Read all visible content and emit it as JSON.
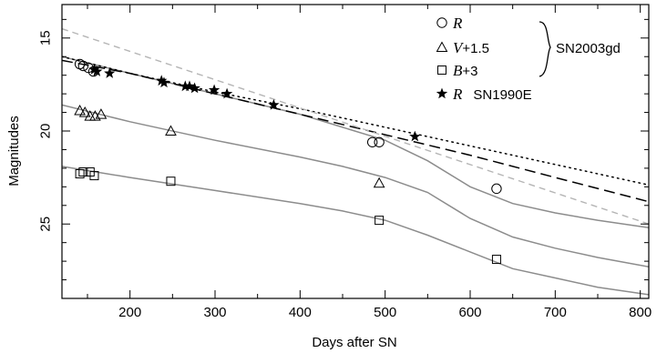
{
  "chart_data": {
    "type": "scatter",
    "title": "",
    "xlabel": "Days after SN",
    "ylabel": "Magnitudes",
    "xlim": [
      120,
      810
    ],
    "ylim": [
      13.2,
      29
    ],
    "y_inverted": true,
    "x_ticks": [
      200,
      300,
      400,
      500,
      600,
      700,
      800
    ],
    "y_ticks": [
      15,
      20,
      25
    ],
    "grid": false,
    "legend_position": "top-right",
    "legend": {
      "entries": [
        {
          "marker": "circle",
          "label": "R"
        },
        {
          "marker": "triangle",
          "label": "V+1.5"
        },
        {
          "marker": "square",
          "label": "B+3"
        },
        {
          "marker": "star",
          "label": "R SN1990E"
        }
      ],
      "group_label": "SN2003gd"
    },
    "series": [
      {
        "name": "R",
        "marker": "circle",
        "x": [
          141,
          145,
          151,
          157
        ],
        "y": [
          16.4,
          16.5,
          16.6,
          16.8
        ]
      },
      {
        "name": "R",
        "marker": "circle",
        "x": [
          485,
          493,
          631
        ],
        "y": [
          20.6,
          20.6,
          23.1
        ]
      },
      {
        "name": "V+1.5",
        "marker": "triangle",
        "x": [
          141,
          147,
          153,
          159,
          166,
          248,
          493
        ],
        "y": [
          18.9,
          19.0,
          19.2,
          19.2,
          19.1,
          20.0,
          22.8
        ]
      },
      {
        "name": "B+3",
        "marker": "square",
        "x": [
          141,
          145,
          153,
          158,
          248,
          493,
          631
        ],
        "y": [
          22.3,
          22.2,
          22.2,
          22.4,
          22.7,
          24.8,
          26.9
        ]
      },
      {
        "name": "R SN1990E",
        "marker": "star",
        "x": [
          158,
          161,
          176,
          237,
          240,
          265,
          270,
          276,
          299,
          314,
          369,
          535
        ],
        "y": [
          16.7,
          16.8,
          16.9,
          17.3,
          17.4,
          17.6,
          17.6,
          17.7,
          17.8,
          18.0,
          18.6,
          20.3
        ]
      }
    ],
    "curves": [
      {
        "style": "solid-gray",
        "x": [
          120,
          200,
          300,
          400,
          450,
          500,
          550,
          600,
          650,
          700,
          750,
          810
        ],
        "y": [
          16.0,
          16.9,
          18.0,
          19.1,
          19.8,
          20.5,
          21.6,
          23.0,
          23.9,
          24.4,
          24.8,
          25.2
        ]
      },
      {
        "style": "solid-gray",
        "x": [
          120,
          200,
          300,
          400,
          450,
          500,
          550,
          600,
          650,
          700,
          750,
          810
        ],
        "y": [
          18.6,
          19.5,
          20.5,
          21.4,
          21.9,
          22.5,
          23.3,
          24.7,
          25.7,
          26.3,
          26.8,
          27.3
        ]
      },
      {
        "style": "solid-gray",
        "x": [
          120,
          200,
          300,
          400,
          450,
          500,
          550,
          600,
          650,
          700,
          750,
          810
        ],
        "y": [
          21.9,
          22.5,
          23.2,
          23.9,
          24.3,
          24.8,
          25.6,
          26.5,
          27.4,
          27.9,
          28.4,
          28.8
        ]
      },
      {
        "style": "dashed-black",
        "x": [
          120,
          200,
          300,
          400,
          500,
          600,
          700,
          810
        ],
        "y": [
          16.2,
          16.9,
          18.0,
          19.1,
          20.2,
          21.3,
          22.5,
          23.8
        ]
      },
      {
        "style": "dotted-black",
        "x": [
          120,
          200,
          300,
          400,
          500,
          600,
          700,
          810
        ],
        "y": [
          16.0,
          16.9,
          17.9,
          18.8,
          19.8,
          20.8,
          21.8,
          22.9
        ]
      },
      {
        "style": "dashed-gray",
        "x": [
          120,
          810
        ],
        "y": [
          14.5,
          25.0
        ]
      }
    ]
  }
}
